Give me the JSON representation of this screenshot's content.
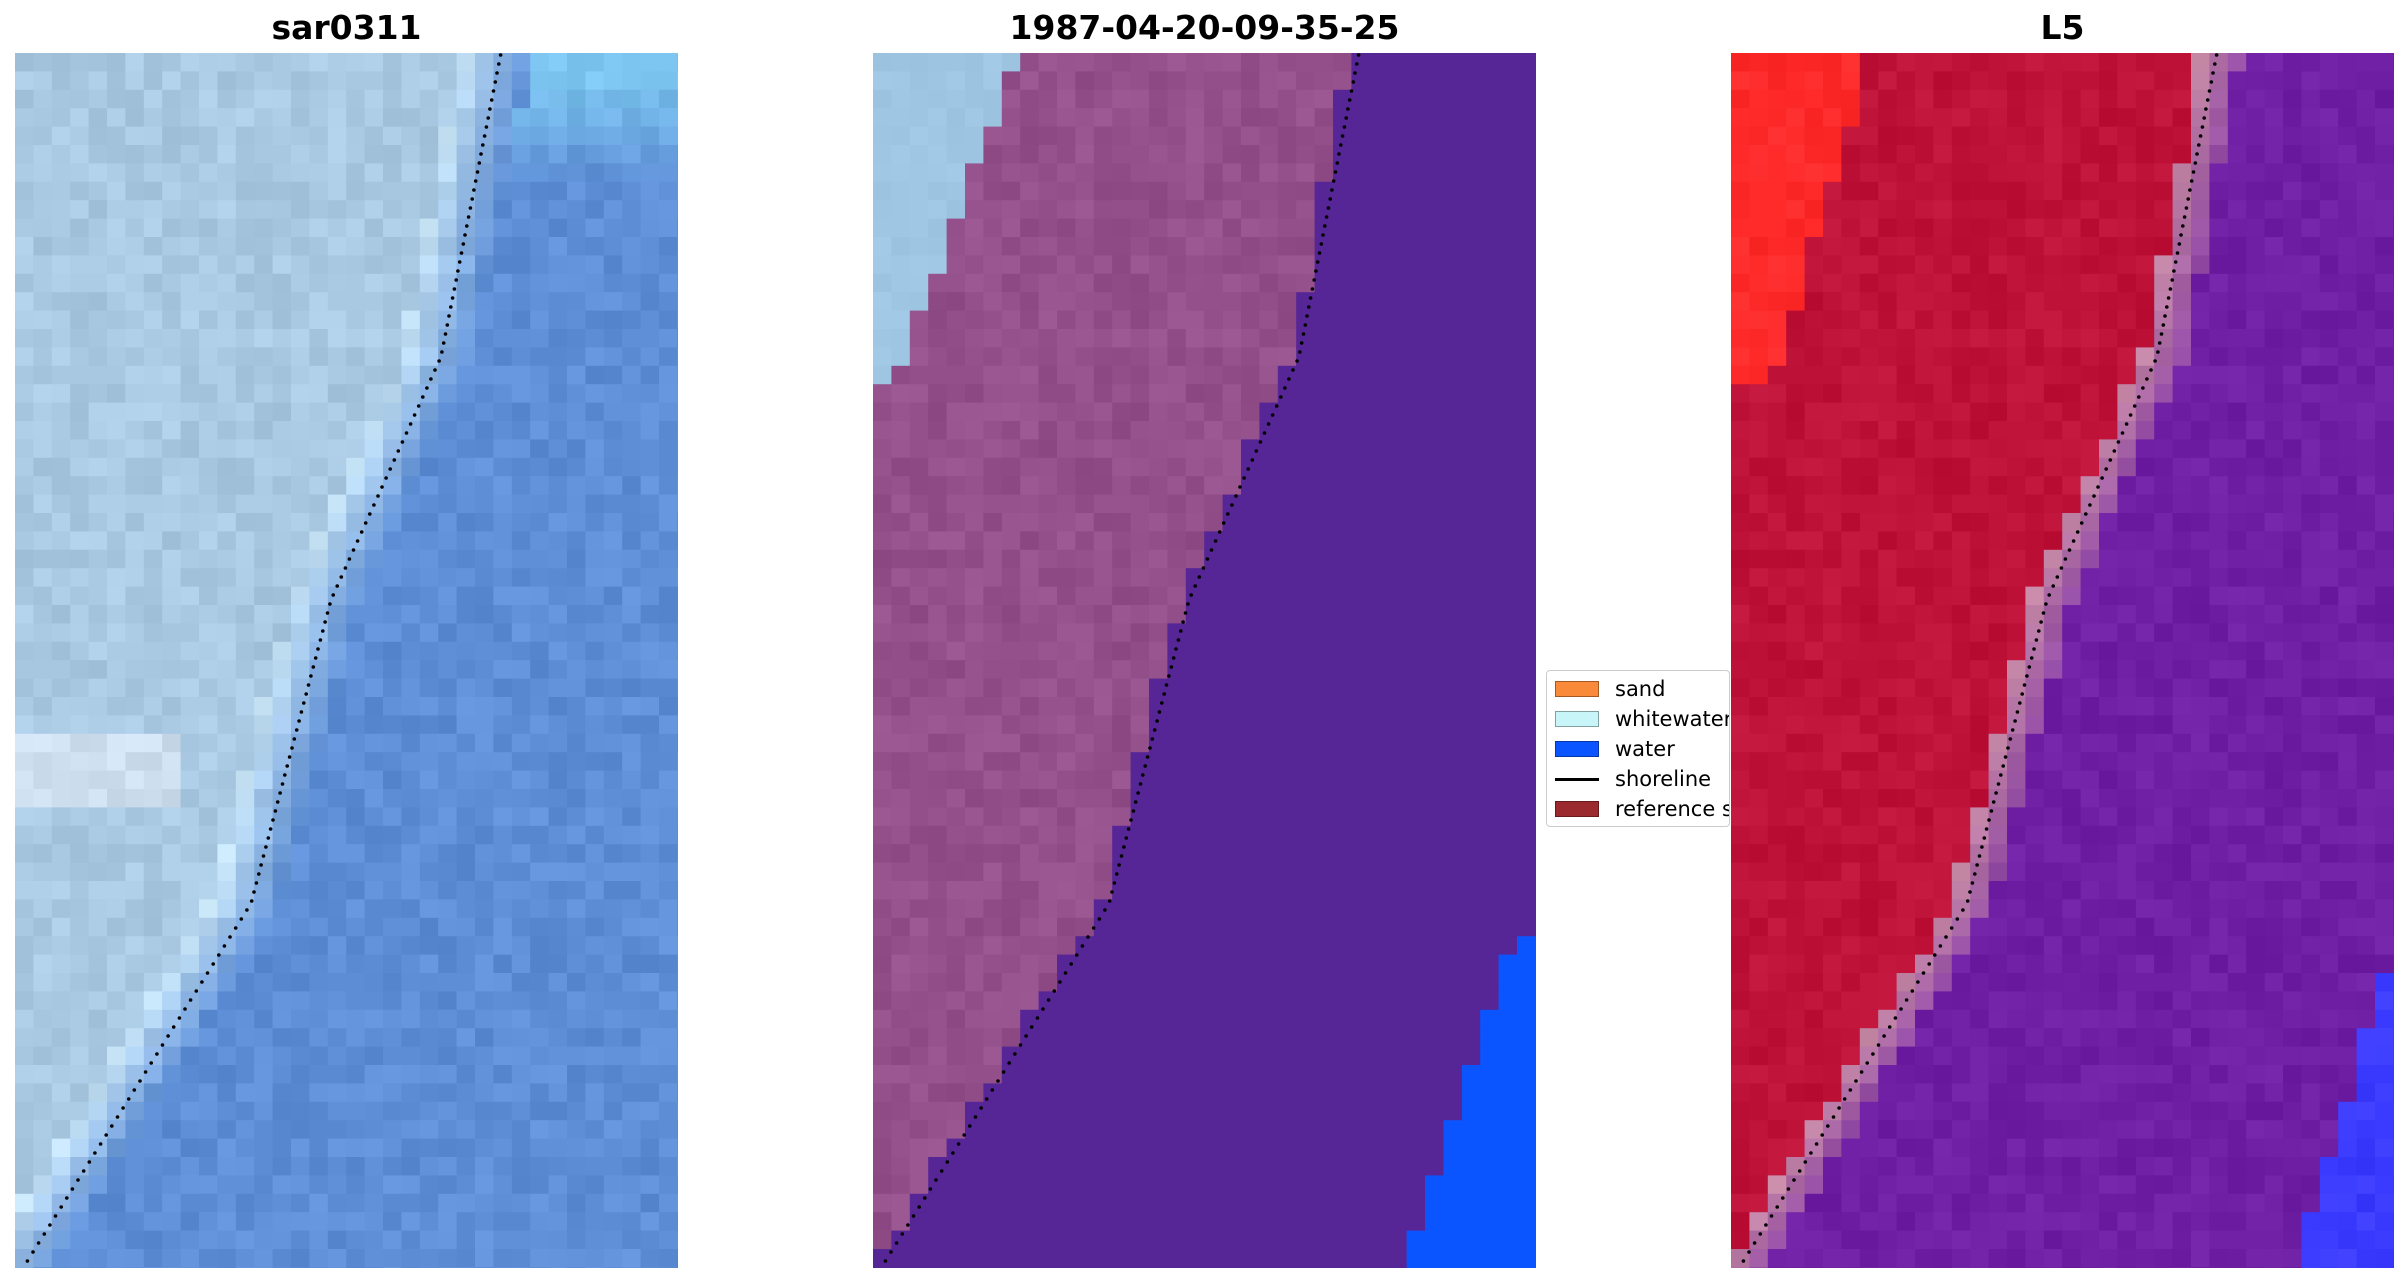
{
  "panels": [
    {
      "title": "sar0311",
      "kind": "rgb-image",
      "palette": {
        "land": "#a9c8e2",
        "surf": "#c9e6f7",
        "water": "#5e8fd6",
        "corner": "#7ac3ee"
      }
    },
    {
      "title": "1987-04-20-09-35-25",
      "kind": "classified-image",
      "palette": {
        "land": "#94508a",
        "whitewater": "#9fc7e3",
        "water": "#562596",
        "blue": "#0a55ff"
      }
    },
    {
      "title": "L5",
      "kind": "index-image",
      "palette": {
        "land": "#bf1238",
        "bright": "#ff2a2a",
        "surf": "#c78aa6",
        "water": "#6e1fa3",
        "blue": "#3b3bff"
      }
    }
  ],
  "legend": {
    "items": [
      {
        "label": "sand",
        "color": "#f98a3a",
        "type": "patch"
      },
      {
        "label": "whitewater",
        "color": "#c8f5f7",
        "type": "patch"
      },
      {
        "label": "water",
        "color": "#0a55ff",
        "type": "patch"
      },
      {
        "label": "shoreline",
        "color": "#000000",
        "type": "line"
      },
      {
        "label": "reference s",
        "color": "#9b2a2e",
        "type": "patch"
      }
    ]
  }
}
